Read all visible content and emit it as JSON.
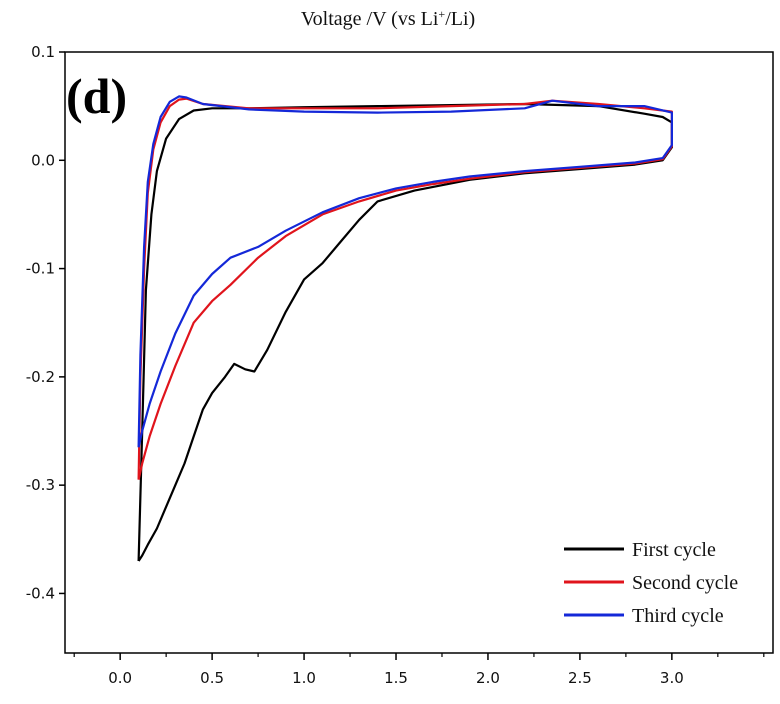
{
  "chart_data": {
    "type": "line",
    "title": "Voltage /V (vs Li",
    "title_sup": "+",
    "title_tail": "/Li)",
    "panel_label": "(d)",
    "xlabel": "",
    "ylabel": "",
    "xlim": [
      -0.3,
      3.55
    ],
    "ylim": [
      -0.455,
      0.1
    ],
    "xticks": [
      0.0,
      0.5,
      1.0,
      1.5,
      2.0,
      2.5,
      3.0
    ],
    "xtick_labels": [
      "0.0",
      "0.5",
      "1.0",
      "1.5",
      "2.0",
      "2.5",
      "3.0"
    ],
    "yticks": [
      0.1,
      0.0,
      -0.1,
      -0.2,
      -0.3,
      -0.4
    ],
    "ytick_labels": [
      "0.1",
      "0.0",
      "-0.1",
      "-0.2",
      "-0.3",
      "-0.4"
    ],
    "legend_position": "bottom-right",
    "grid": false,
    "series": [
      {
        "name": "First cycle",
        "color": "#000000",
        "x": [
          0.1,
          0.12,
          0.14,
          0.17,
          0.2,
          0.25,
          0.32,
          0.4,
          0.5,
          0.7,
          1.0,
          1.4,
          1.8,
          2.2,
          2.6,
          2.85,
          2.95,
          3.0,
          3.0,
          2.95,
          2.8,
          2.5,
          2.2,
          1.9,
          1.6,
          1.4,
          1.3,
          1.2,
          1.1,
          1.0,
          0.9,
          0.8,
          0.73,
          0.68,
          0.62,
          0.57,
          0.5,
          0.45,
          0.4,
          0.35,
          0.3,
          0.25,
          0.2,
          0.15,
          0.12,
          0.1
        ],
        "y": [
          -0.37,
          -0.25,
          -0.12,
          -0.05,
          -0.01,
          0.02,
          0.038,
          0.046,
          0.048,
          0.048,
          0.049,
          0.05,
          0.051,
          0.052,
          0.05,
          0.043,
          0.04,
          0.035,
          0.012,
          0.0,
          -0.004,
          -0.008,
          -0.012,
          -0.018,
          -0.028,
          -0.038,
          -0.055,
          -0.075,
          -0.095,
          -0.11,
          -0.14,
          -0.175,
          -0.195,
          -0.193,
          -0.188,
          -0.2,
          -0.215,
          -0.23,
          -0.255,
          -0.28,
          -0.3,
          -0.32,
          -0.34,
          -0.355,
          -0.365,
          -0.37
        ]
      },
      {
        "name": "Second cycle",
        "color": "#e0141c",
        "x": [
          0.1,
          0.11,
          0.13,
          0.15,
          0.18,
          0.22,
          0.27,
          0.32,
          0.36,
          0.45,
          0.7,
          1.0,
          1.4,
          1.8,
          2.2,
          2.35,
          2.6,
          2.85,
          3.0,
          3.0,
          2.95,
          2.8,
          2.5,
          2.2,
          1.9,
          1.7,
          1.5,
          1.3,
          1.1,
          0.9,
          0.75,
          0.6,
          0.5,
          0.4,
          0.3,
          0.22,
          0.16,
          0.12,
          0.1
        ],
        "y": [
          -0.295,
          -0.2,
          -0.1,
          -0.03,
          0.01,
          0.035,
          0.05,
          0.056,
          0.057,
          0.052,
          0.048,
          0.048,
          0.048,
          0.05,
          0.052,
          0.055,
          0.052,
          0.048,
          0.045,
          0.013,
          0.001,
          -0.003,
          -0.007,
          -0.011,
          -0.017,
          -0.022,
          -0.028,
          -0.038,
          -0.05,
          -0.07,
          -0.09,
          -0.115,
          -0.13,
          -0.15,
          -0.19,
          -0.225,
          -0.255,
          -0.28,
          -0.295
        ]
      },
      {
        "name": "Third cycle",
        "color": "#1428d8",
        "x": [
          0.1,
          0.11,
          0.13,
          0.15,
          0.18,
          0.22,
          0.27,
          0.32,
          0.36,
          0.45,
          0.7,
          1.0,
          1.4,
          1.8,
          2.2,
          2.35,
          2.6,
          2.85,
          3.0,
          3.0,
          2.95,
          2.8,
          2.5,
          2.2,
          1.9,
          1.7,
          1.5,
          1.3,
          1.1,
          0.9,
          0.75,
          0.6,
          0.5,
          0.4,
          0.3,
          0.22,
          0.16,
          0.12,
          0.1
        ],
        "y": [
          -0.265,
          -0.18,
          -0.08,
          -0.02,
          0.015,
          0.04,
          0.054,
          0.059,
          0.058,
          0.052,
          0.047,
          0.045,
          0.044,
          0.045,
          0.048,
          0.055,
          0.05,
          0.05,
          0.044,
          0.014,
          0.002,
          -0.002,
          -0.006,
          -0.01,
          -0.015,
          -0.02,
          -0.026,
          -0.035,
          -0.048,
          -0.065,
          -0.08,
          -0.09,
          -0.105,
          -0.125,
          -0.16,
          -0.195,
          -0.225,
          -0.25,
          -0.265
        ]
      }
    ]
  }
}
